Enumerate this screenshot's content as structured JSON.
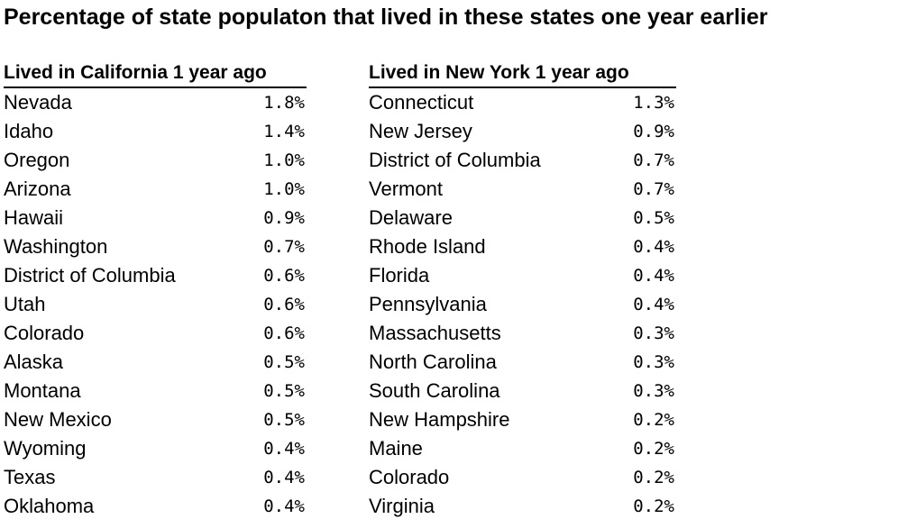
{
  "title": "Percentage of state populaton that lived in these states one year earlier",
  "chart_data": {
    "type": "table",
    "title": "Percentage of state populaton that lived in these states one year earlier",
    "tables": [
      {
        "header": "Lived in California 1 year ago",
        "rows": [
          {
            "state": "Nevada",
            "value": "1.8%"
          },
          {
            "state": "Idaho",
            "value": "1.4%"
          },
          {
            "state": "Oregon",
            "value": "1.0%"
          },
          {
            "state": "Arizona",
            "value": "1.0%"
          },
          {
            "state": "Hawaii",
            "value": "0.9%"
          },
          {
            "state": "Washington",
            "value": "0.7%"
          },
          {
            "state": "District of Columbia",
            "value": "0.6%"
          },
          {
            "state": "Utah",
            "value": "0.6%"
          },
          {
            "state": "Colorado",
            "value": "0.6%"
          },
          {
            "state": "Alaska",
            "value": "0.5%"
          },
          {
            "state": "Montana",
            "value": "0.5%"
          },
          {
            "state": "New Mexico",
            "value": "0.5%"
          },
          {
            "state": "Wyoming",
            "value": "0.4%"
          },
          {
            "state": "Texas",
            "value": "0.4%"
          },
          {
            "state": "Oklahoma",
            "value": "0.4%"
          }
        ]
      },
      {
        "header": "Lived in New York 1 year ago",
        "rows": [
          {
            "state": "Connecticut",
            "value": "1.3%"
          },
          {
            "state": "New Jersey",
            "value": "0.9%"
          },
          {
            "state": "District of Columbia",
            "value": "0.7%"
          },
          {
            "state": "Vermont",
            "value": "0.7%"
          },
          {
            "state": "Delaware",
            "value": "0.5%"
          },
          {
            "state": "Rhode Island",
            "value": "0.4%"
          },
          {
            "state": "Florida",
            "value": "0.4%"
          },
          {
            "state": "Pennsylvania",
            "value": "0.4%"
          },
          {
            "state": "Massachusetts",
            "value": "0.3%"
          },
          {
            "state": "North Carolina",
            "value": "0.3%"
          },
          {
            "state": "South Carolina",
            "value": "0.3%"
          },
          {
            "state": "New Hampshire",
            "value": "0.2%"
          },
          {
            "state": "Maine",
            "value": "0.2%"
          },
          {
            "state": "Colorado",
            "value": "0.2%"
          },
          {
            "state": "Virginia",
            "value": "0.2%"
          }
        ]
      }
    ]
  }
}
